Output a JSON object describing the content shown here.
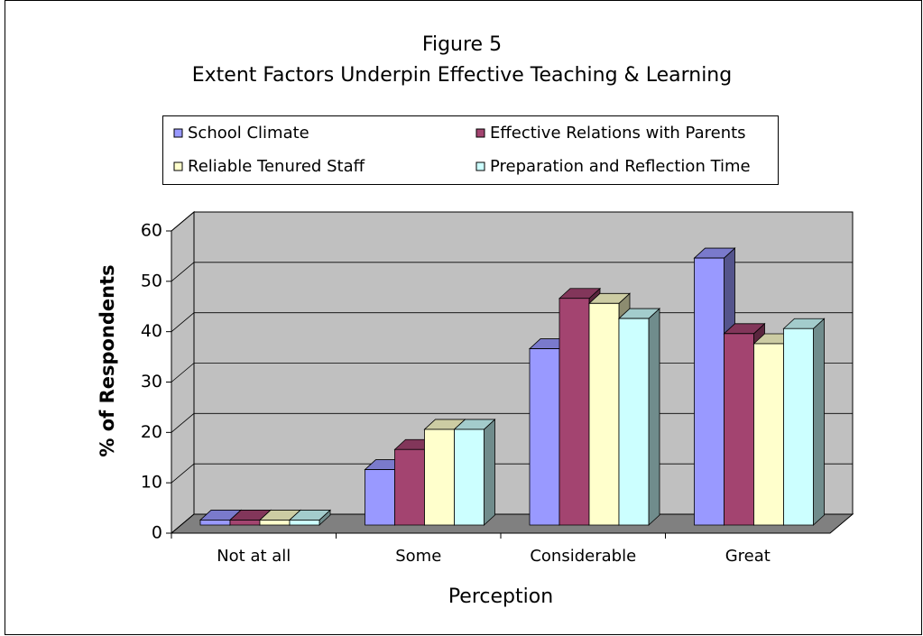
{
  "chart_data": {
    "type": "bar3d",
    "title": "Figure 5",
    "subtitle": "Extent Factors Underpin Effective Teaching & Learning",
    "x_label": "Perception",
    "y_label": "% of Respondents",
    "categories": [
      "Not at all",
      "Some",
      "Considerable",
      "Great"
    ],
    "series": [
      {
        "name": "School Climate",
        "color": "#9999ff",
        "values": [
          1,
          11,
          35,
          53
        ]
      },
      {
        "name": "Effective Relations with Parents",
        "color": "#a34470",
        "values": [
          1,
          15,
          45,
          38
        ]
      },
      {
        "name": "Reliable Tenured Staff",
        "color": "#ffffcc",
        "values": [
          1,
          19,
          44,
          36
        ]
      },
      {
        "name": "Preparation and Reflection Time",
        "color": "#ccffff",
        "values": [
          1,
          19,
          41,
          39
        ]
      }
    ],
    "ylim": [
      0,
      60
    ],
    "yticks": [
      0,
      10,
      20,
      30,
      40,
      50,
      60
    ],
    "grid": true
  }
}
